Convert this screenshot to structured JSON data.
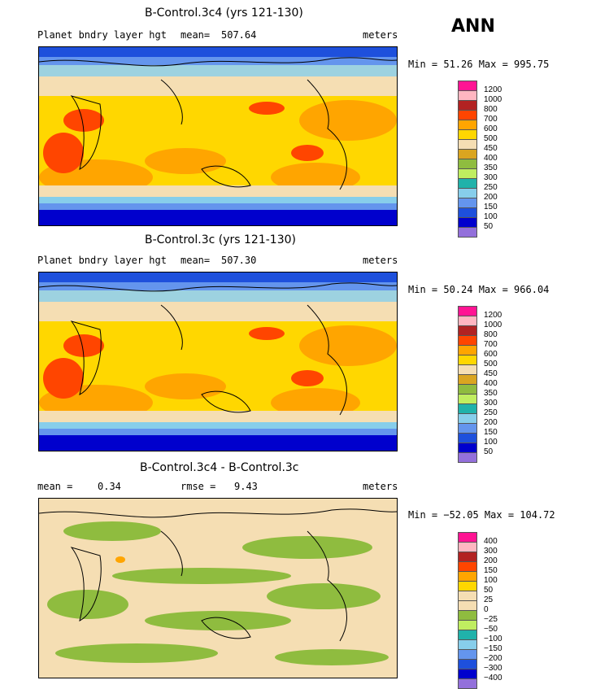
{
  "season": "ANN",
  "panels": [
    {
      "title": "B-Control.3c4 (yrs 121-130)",
      "field": "Planet bndry layer hgt",
      "stat_label": "mean=",
      "stat_value": "507.64",
      "units": "meters",
      "minmax": "Min =   51.26 Max = 995.75",
      "colorbar": {
        "labels": [
          "1200",
          "1000",
          "800",
          "700",
          "600",
          "500",
          "450",
          "400",
          "350",
          "300",
          "250",
          "200",
          "150",
          "100",
          "50"
        ],
        "colors": [
          "#ff1493",
          "#ffb6c1",
          "#b22222",
          "#ff4500",
          "#ffa500",
          "#ffd700",
          "#f5deb3",
          "#daa520",
          "#8fbc3f",
          "#c0ee60",
          "#20b2aa",
          "#87ceeb",
          "#6495ed",
          "#1e50dc",
          "#0000cd",
          "#9370db"
        ]
      }
    },
    {
      "title": "B-Control.3c (yrs 121-130)",
      "field": "Planet bndry layer hgt",
      "stat_label": "mean=",
      "stat_value": "507.30",
      "units": "meters",
      "minmax": "Min =   50.24 Max = 966.04",
      "colorbar": {
        "labels": [
          "1200",
          "1000",
          "800",
          "700",
          "600",
          "500",
          "450",
          "400",
          "350",
          "300",
          "250",
          "200",
          "150",
          "100",
          "50"
        ],
        "colors": [
          "#ff1493",
          "#ffb6c1",
          "#b22222",
          "#ff4500",
          "#ffa500",
          "#ffd700",
          "#f5deb3",
          "#daa520",
          "#8fbc3f",
          "#c0ee60",
          "#20b2aa",
          "#87ceeb",
          "#6495ed",
          "#1e50dc",
          "#0000cd",
          "#9370db"
        ]
      }
    },
    {
      "title": "B-Control.3c4 - B-Control.3c",
      "mean_label": "mean =",
      "mean_value": "0.34",
      "rmse_label": "rmse =",
      "rmse_value": "9.43",
      "units": "meters",
      "minmax": "Min = −52.05 Max = 104.72",
      "colorbar": {
        "labels": [
          "400",
          "300",
          "200",
          "150",
          "100",
          "50",
          "25",
          "0",
          "−25",
          "−50",
          "−100",
          "−150",
          "−200",
          "−300",
          "−400"
        ],
        "colors": [
          "#ff1493",
          "#ffb6c1",
          "#b22222",
          "#ff4500",
          "#ffa500",
          "#ffd700",
          "#f5deb3",
          "#f5deb3",
          "#8fbc3f",
          "#c0ee60",
          "#20b2aa",
          "#87ceeb",
          "#6495ed",
          "#1e50dc",
          "#0000cd",
          "#9370db"
        ]
      }
    }
  ]
}
